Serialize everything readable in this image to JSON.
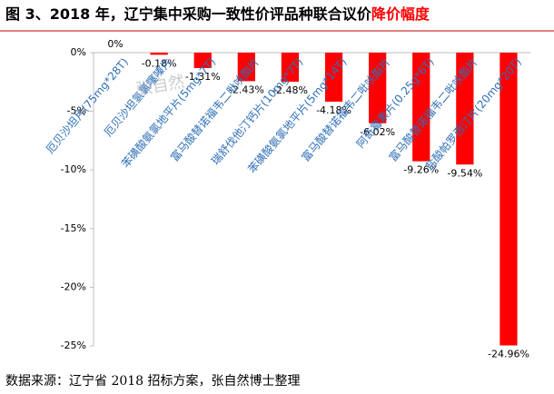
{
  "chart_data": {
    "type": "bar",
    "title": "图 3、2018 年，辽宁集中采购一致性价评品种联合议价",
    "title_highlight": "降价幅度",
    "categories": [
      "厄贝沙坦片(75mg*28T)",
      "厄贝沙坦氢氯噻嗪片",
      "苯磺酸氨氯地平片(5mg*7T)",
      "富马酸替诺福韦二吡呋酯片",
      "瑞舒伐他汀钙片(10mg*7T)",
      "苯磺酸氨氯地平片(5mg*14T)",
      "富马酸替诺福韦二吡呋酯片",
      "阿奇霉素片(0.25g*6T)",
      "富马酸替诺福韦二吡呋酯片",
      "盐酸帕罗西汀片(20mg*20T)"
    ],
    "values": [
      0,
      -0.18,
      -1.31,
      -2.43,
      -2.48,
      -4.18,
      -6.02,
      -9.26,
      -9.54,
      -24.96
    ],
    "value_labels": [
      "0%",
      "-0.18%",
      "-1.31%",
      "-2.43%",
      "-2.48%",
      "-4.18%",
      "-6.02%",
      "-9.26%",
      "-9.54%",
      "-24.96%"
    ],
    "color": "#ff0000",
    "ylim": [
      -25,
      0
    ],
    "yticks": [
      {
        "value": 0,
        "label": "0%"
      },
      {
        "value": -5,
        "label": "-5%"
      },
      {
        "value": -10,
        "label": "-10%"
      },
      {
        "value": -15,
        "label": "-15%"
      },
      {
        "value": -20,
        "label": "-20%"
      },
      {
        "value": -25,
        "label": "-25%"
      }
    ],
    "watermark": "张自然",
    "source": "数据来源：辽宁省 2018 招标方案，张自然博士整理"
  }
}
